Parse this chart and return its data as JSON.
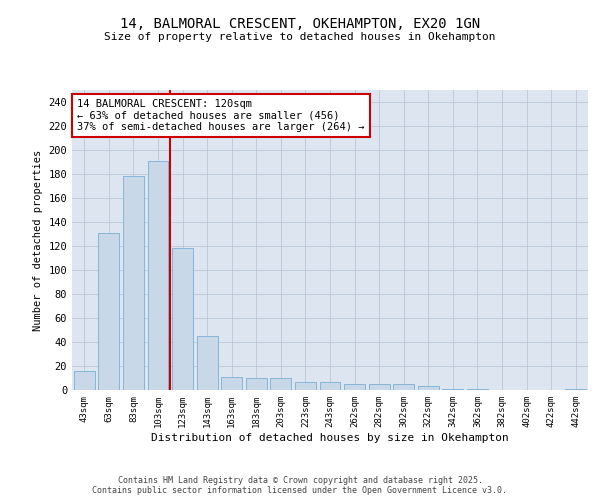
{
  "title_line1": "14, BALMORAL CRESCENT, OKEHAMPTON, EX20 1GN",
  "title_line2": "Size of property relative to detached houses in Okehampton",
  "xlabel": "Distribution of detached houses by size in Okehampton",
  "ylabel": "Number of detached properties",
  "categories": [
    "43sqm",
    "63sqm",
    "83sqm",
    "103sqm",
    "123sqm",
    "143sqm",
    "163sqm",
    "183sqm",
    "203sqm",
    "223sqm",
    "243sqm",
    "262sqm",
    "282sqm",
    "302sqm",
    "322sqm",
    "342sqm",
    "362sqm",
    "382sqm",
    "402sqm",
    "422sqm",
    "442sqm"
  ],
  "values": [
    16,
    131,
    178,
    191,
    118,
    45,
    11,
    10,
    10,
    7,
    7,
    5,
    5,
    5,
    3,
    1,
    1,
    0,
    0,
    0,
    1
  ],
  "bar_color": "#c8d8e8",
  "bar_edge_color": "#7bafd4",
  "grid_color": "#b8c8d8",
  "background_color": "#dde6f0",
  "vline_color": "#cc0000",
  "annotation_text": "14 BALMORAL CRESCENT: 120sqm\n← 63% of detached houses are smaller (456)\n37% of semi-detached houses are larger (264) →",
  "annotation_box_color": "#cc0000",
  "footer_line1": "Contains HM Land Registry data © Crown copyright and database right 2025.",
  "footer_line2": "Contains public sector information licensed under the Open Government Licence v3.0.",
  "ylim": [
    0,
    250
  ],
  "yticks": [
    0,
    20,
    40,
    60,
    80,
    100,
    120,
    140,
    160,
    180,
    200,
    220,
    240
  ],
  "fig_width": 6.0,
  "fig_height": 5.0
}
